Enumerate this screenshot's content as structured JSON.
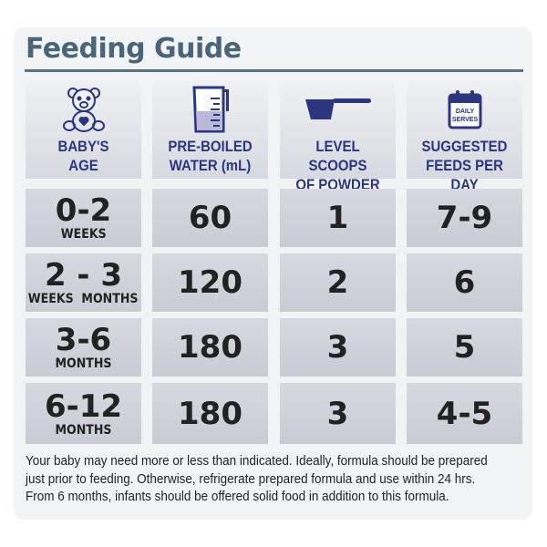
{
  "title": "Feeding Guide",
  "columns": [
    {
      "icon": "teddy-bear-icon",
      "label1": "BABY'S",
      "label2": "AGE"
    },
    {
      "icon": "measuring-jug-icon",
      "label1": "PRE-BOILED",
      "label2": "WATER (mL)"
    },
    {
      "icon": "scoop-icon",
      "label1": "LEVEL SCOOPS",
      "label2": "OF POWDER"
    },
    {
      "icon": "calendar-icon",
      "label1": "SUGGESTED",
      "label2": "FEEDS PER DAY",
      "icon_text1": "DAILY",
      "icon_text2": "SERVES"
    }
  ],
  "rows": [
    {
      "age": "0-2",
      "age_unit": "WEEKS",
      "water": "60",
      "scoops": "1",
      "feeds": "7-9"
    },
    {
      "age": "2 - 3",
      "age_unit": "WEEKS  MONTHS",
      "water": "120",
      "scoops": "2",
      "feeds": "6"
    },
    {
      "age": "3-6",
      "age_unit": "MONTHS",
      "water": "180",
      "scoops": "3",
      "feeds": "5"
    },
    {
      "age": "6-12",
      "age_unit": "MONTHS",
      "water": "180",
      "scoops": "3",
      "feeds": "4-5"
    }
  ],
  "footer": [
    "Your baby may need more or less than indicated. Ideally, formula should be prepared",
    "just prior to feeding. Otherwise, refrigerate prepared formula and use within 24 hrs.",
    "From 6 months, infants should be offered solid food in addition to this formula."
  ],
  "colors": {
    "title": "#4a6578",
    "header_text": "#2b3580",
    "icon": "#2b3580"
  }
}
